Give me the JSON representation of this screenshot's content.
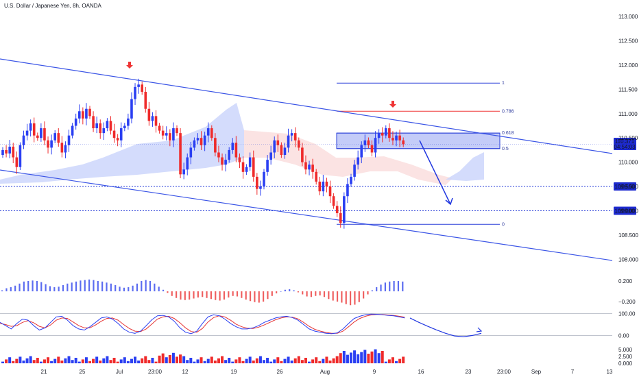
{
  "title": "U.S. Dollar / Japanese Yen, 8h, OANDA",
  "colors": {
    "up": "#2a3ff2",
    "down": "#ef2a2a",
    "channel": "#3b55e6",
    "cloud_up": "#ccd6fb",
    "cloud_down": "#fbe0e0",
    "fib_red": "#ef3535",
    "hist_up": "#5b6cf0",
    "hist_down": "#ef6060",
    "stoch_k": "#2a3ff2",
    "stoch_d": "#e53535",
    "arrow": "#ef3535",
    "label_bg": "#1e2bd0",
    "label_fg": "#ffffff"
  },
  "chart_data": {
    "type": "candlestick",
    "symbol": "U.S. Dollar / Japanese Yen",
    "interval": "8h",
    "source": "OANDA",
    "y_ticks": [
      "113.000",
      "112.500",
      "112.000",
      "111.500",
      "111.000",
      "110.500",
      "110.000",
      "109.500",
      "109.000",
      "108.500",
      "108.000"
    ],
    "ylim": [
      107.75,
      113.2
    ],
    "x_tick_labels": [
      "21",
      "25",
      "Jul",
      "23:00",
      "12",
      "19",
      "26",
      "Aug",
      "9",
      "16",
      "23",
      "23:00",
      "Sep",
      "7",
      "13"
    ],
    "price_label": {
      "price": "110.371",
      "countdown": "04:54:03"
    },
    "level_labels": [
      "109.500",
      "109.000"
    ],
    "horizontal_levels": [
      109.5,
      109.0
    ],
    "candle_closes": [
      110.25,
      110.18,
      110.32,
      110.1,
      109.9,
      110.35,
      110.55,
      110.65,
      110.8,
      110.55,
      110.5,
      110.7,
      110.45,
      110.3,
      110.45,
      110.6,
      110.4,
      110.2,
      110.35,
      110.55,
      110.75,
      110.9,
      111.05,
      110.9,
      111.1,
      110.95,
      110.7,
      110.8,
      110.6,
      110.7,
      110.85,
      110.65,
      110.5,
      110.45,
      110.7,
      110.75,
      110.9,
      111.3,
      111.55,
      111.6,
      111.45,
      111.1,
      110.85,
      110.95,
      110.75,
      110.65,
      110.55,
      110.6,
      110.45,
      110.7,
      110.6,
      109.75,
      109.85,
      110.1,
      110.3,
      110.45,
      110.5,
      110.35,
      110.55,
      110.7,
      110.5,
      110.2,
      110.1,
      109.95,
      110.05,
      110.25,
      110.4,
      110.1,
      110.0,
      109.8,
      109.9,
      110.1,
      109.7,
      109.45,
      109.5,
      109.8,
      110.05,
      110.2,
      110.45,
      110.35,
      110.15,
      110.3,
      110.55,
      110.6,
      110.45,
      110.3,
      110.0,
      109.85,
      109.95,
      109.8,
      109.6,
      109.4,
      109.6,
      109.5,
      109.3,
      109.1,
      108.95,
      108.75,
      109.3,
      109.55,
      109.7,
      109.95,
      110.1,
      110.35,
      110.45,
      110.35,
      110.2,
      110.5,
      110.6,
      110.55,
      110.7,
      110.5,
      110.45,
      110.55,
      110.45,
      110.37
    ],
    "fib_levels": [
      {
        "label": "1",
        "value": 111.63
      },
      {
        "label": "0.786",
        "value": 111.05
      },
      {
        "label": "0.618",
        "value": 110.6
      },
      {
        "label": "0.5",
        "value": 110.28
      },
      {
        "label": "0",
        "value": 108.72
      }
    ],
    "macd_histogram": {
      "y_ticks": [
        "0.200",
        "−0.200"
      ],
      "ylim": [
        -0.36,
        0.36
      ],
      "values": [
        0.02,
        0.06,
        0.08,
        0.11,
        0.15,
        0.19,
        0.2,
        0.21,
        0.2,
        0.18,
        0.14,
        0.1,
        0.08,
        0.09,
        0.12,
        0.15,
        0.17,
        0.19,
        0.21,
        0.22,
        0.23,
        0.22,
        0.2,
        0.19,
        0.17,
        0.15,
        0.12,
        0.09,
        0.07,
        0.08,
        0.11,
        0.15,
        0.2,
        0.22,
        0.2,
        0.15,
        0.09,
        0.03,
        -0.03,
        -0.09,
        -0.13,
        -0.16,
        -0.17,
        -0.16,
        -0.14,
        -0.12,
        -0.11,
        -0.13,
        -0.15,
        -0.17,
        -0.18,
        -0.16,
        -0.12,
        -0.09,
        -0.1,
        -0.13,
        -0.16,
        -0.19,
        -0.21,
        -0.22,
        -0.2,
        -0.15,
        -0.09,
        -0.04,
        0.0,
        0.03,
        0.04,
        0.02,
        -0.02,
        -0.06,
        -0.1,
        -0.11,
        -0.09,
        -0.08,
        -0.11,
        -0.15,
        -0.18,
        -0.2,
        -0.22,
        -0.25,
        -0.27,
        -0.26,
        -0.21,
        -0.14,
        -0.06,
        0.02,
        0.08,
        0.13,
        0.17,
        0.19,
        0.2,
        0.2,
        0.19
      ]
    },
    "stochastic": {
      "y_ticks": [
        "100.00",
        "0.00"
      ],
      "ylim": [
        -8,
        108
      ],
      "k": [
        60,
        45,
        30,
        55,
        75,
        70,
        45,
        25,
        35,
        60,
        85,
        88,
        70,
        45,
        30,
        25,
        40,
        60,
        80,
        85,
        75,
        55,
        30,
        15,
        10,
        20,
        45,
        72,
        90,
        92,
        85,
        65,
        35,
        15,
        8,
        20,
        55,
        85,
        95,
        90,
        75,
        55,
        40,
        30,
        30,
        35,
        45,
        60,
        70,
        80,
        85,
        88,
        82,
        70,
        50,
        30,
        20,
        15,
        10,
        8,
        12,
        30,
        55,
        78,
        88,
        95,
        98,
        97,
        95,
        92,
        90,
        85,
        80
      ],
      "d": [
        55,
        50,
        42,
        45,
        60,
        68,
        58,
        42,
        35,
        48,
        70,
        80,
        78,
        62,
        45,
        35,
        35,
        48,
        65,
        78,
        80,
        70,
        50,
        32,
        20,
        18,
        30,
        52,
        75,
        85,
        88,
        78,
        58,
        35,
        18,
        15,
        32,
        62,
        82,
        90,
        85,
        70,
        52,
        40,
        33,
        32,
        38,
        48,
        60,
        72,
        80,
        85,
        84,
        76,
        60,
        42,
        28,
        20,
        14,
        10,
        10,
        20,
        40,
        62,
        78,
        88,
        94,
        96,
        96,
        94,
        92,
        88,
        84
      ],
      "projection": [
        80,
        60,
        42,
        25,
        10,
        -2,
        -6,
        0,
        10
      ]
    },
    "volume": {
      "y_ticks": [
        "5.000",
        "2.500",
        "0.000"
      ],
      "ylim": [
        0,
        8
      ]
    }
  }
}
